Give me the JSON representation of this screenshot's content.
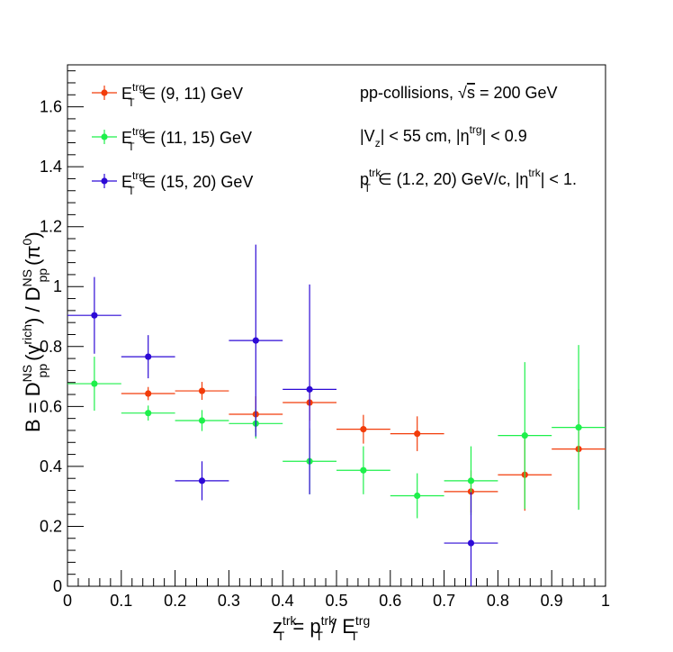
{
  "chart_data": {
    "type": "scatter",
    "title": "",
    "xlabel": {
      "base": "z",
      "sub": "T",
      "sup": "trk",
      "rest": " = p",
      "sub2": "T",
      "sup2": "trk",
      "rest2": " / E",
      "sub3": "T",
      "sup3": "trg"
    },
    "ylabel": {
      "text1": "B = D",
      "sub1": "pp",
      "sup1": "NS",
      "text2": "(γ",
      "sup2": "rich",
      "text3": ") / D",
      "sub3": "pp",
      "sup3": "NS",
      "text4": "(π",
      "sup4": "0",
      "text5": ")"
    },
    "xlim": [
      0,
      1
    ],
    "ylim": [
      0,
      1.74
    ],
    "x_ticks": [
      "0",
      "0.1",
      "0.2",
      "0.3",
      "0.4",
      "0.5",
      "0.6",
      "0.7",
      "0.8",
      "0.9",
      "1"
    ],
    "y_ticks": [
      "0",
      "0.2",
      "0.4",
      "0.6",
      "0.8",
      "1",
      "1.2",
      "1.4",
      "1.6"
    ],
    "x_tick_values": [
      0,
      0.1,
      0.2,
      0.3,
      0.4,
      0.5,
      0.6,
      0.7,
      0.8,
      0.9,
      1
    ],
    "y_tick_values": [
      0,
      0.2,
      0.4,
      0.6,
      0.8,
      1.0,
      1.2,
      1.4,
      1.6
    ],
    "grid": false,
    "legend_position": "top-left",
    "series": [
      {
        "name": {
          "base": "E",
          "sub": "T",
          "sup": "trg",
          "range": " ∈ (9, 11) GeV"
        },
        "color": "#f23c0a",
        "points": [
          {
            "x": 0.15,
            "y": 0.643,
            "xerr": 0.05,
            "yerr": 0.022
          },
          {
            "x": 0.25,
            "y": 0.652,
            "xerr": 0.05,
            "yerr": 0.03
          },
          {
            "x": 0.35,
            "y": 0.574,
            "xerr": 0.05,
            "yerr": 0.06
          },
          {
            "x": 0.45,
            "y": 0.613,
            "xerr": 0.05,
            "yerr": 0.06
          },
          {
            "x": 0.55,
            "y": 0.524,
            "xerr": 0.05,
            "yerr": 0.048
          },
          {
            "x": 0.65,
            "y": 0.509,
            "xerr": 0.05,
            "yerr": 0.058
          },
          {
            "x": 0.75,
            "y": 0.316,
            "xerr": 0.05,
            "yerr": 0.07
          },
          {
            "x": 0.85,
            "y": 0.372,
            "xerr": 0.05,
            "yerr": 0.12
          },
          {
            "x": 0.95,
            "y": 0.458,
            "xerr": 0.05,
            "yerr": 0.2
          }
        ]
      },
      {
        "name": {
          "base": "E",
          "sub": "T",
          "sup": "trg",
          "range": " ∈ (11, 15) GeV"
        },
        "color": "#1ef04b",
        "points": [
          {
            "x": 0.05,
            "y": 0.676,
            "xerr": 0.05,
            "yerr": 0.09
          },
          {
            "x": 0.15,
            "y": 0.578,
            "xerr": 0.05,
            "yerr": 0.025
          },
          {
            "x": 0.25,
            "y": 0.553,
            "xerr": 0.05,
            "yerr": 0.035
          },
          {
            "x": 0.35,
            "y": 0.543,
            "xerr": 0.05,
            "yerr": 0.05
          },
          {
            "x": 0.45,
            "y": 0.417,
            "xerr": 0.05,
            "yerr": 0.11
          },
          {
            "x": 0.55,
            "y": 0.387,
            "xerr": 0.05,
            "yerr": 0.08
          },
          {
            "x": 0.65,
            "y": 0.302,
            "xerr": 0.05,
            "yerr": 0.075
          },
          {
            "x": 0.75,
            "y": 0.352,
            "xerr": 0.05,
            "yerr": 0.115
          },
          {
            "x": 0.85,
            "y": 0.503,
            "xerr": 0.05,
            "yerr": 0.245
          },
          {
            "x": 0.95,
            "y": 0.53,
            "xerr": 0.05,
            "yerr": 0.275
          }
        ]
      },
      {
        "name": {
          "base": "E",
          "sub": "T",
          "sup": "trg",
          "range": " ∈ (15, 20) GeV"
        },
        "color": "#2d0ad6",
        "points": [
          {
            "x": 0.05,
            "y": 0.904,
            "xerr": 0.05,
            "yerr": 0.128
          },
          {
            "x": 0.15,
            "y": 0.766,
            "xerr": 0.05,
            "yerr": 0.072
          },
          {
            "x": 0.25,
            "y": 0.352,
            "xerr": 0.05,
            "yerr": 0.065
          },
          {
            "x": 0.35,
            "y": 0.82,
            "xerr": 0.05,
            "yerr": 0.32
          },
          {
            "x": 0.45,
            "y": 0.657,
            "xerr": 0.05,
            "yerr": 0.35
          },
          {
            "x": 0.75,
            "y": 0.144,
            "xerr": 0.05,
            "yerr": 0.17
          }
        ]
      }
    ],
    "annotations": [
      {
        "kind": "sqrt",
        "text1": "pp-collisions, ",
        "sqrt": "s",
        "text2": " = 200 GeV"
      },
      {
        "kind": "vz",
        "text1": "|V",
        "sub1": "z",
        "text2": "| < 55 cm, |η",
        "sup2": "trg",
        "text3": "| < 0.9"
      },
      {
        "kind": "ptrk",
        "text1": "p",
        "sub1": "T",
        "sup1": "trk",
        "text2": " ∈ (1.2, 20) GeV/c, |η",
        "sup2": "trk",
        "text3": "| < 1."
      }
    ]
  }
}
